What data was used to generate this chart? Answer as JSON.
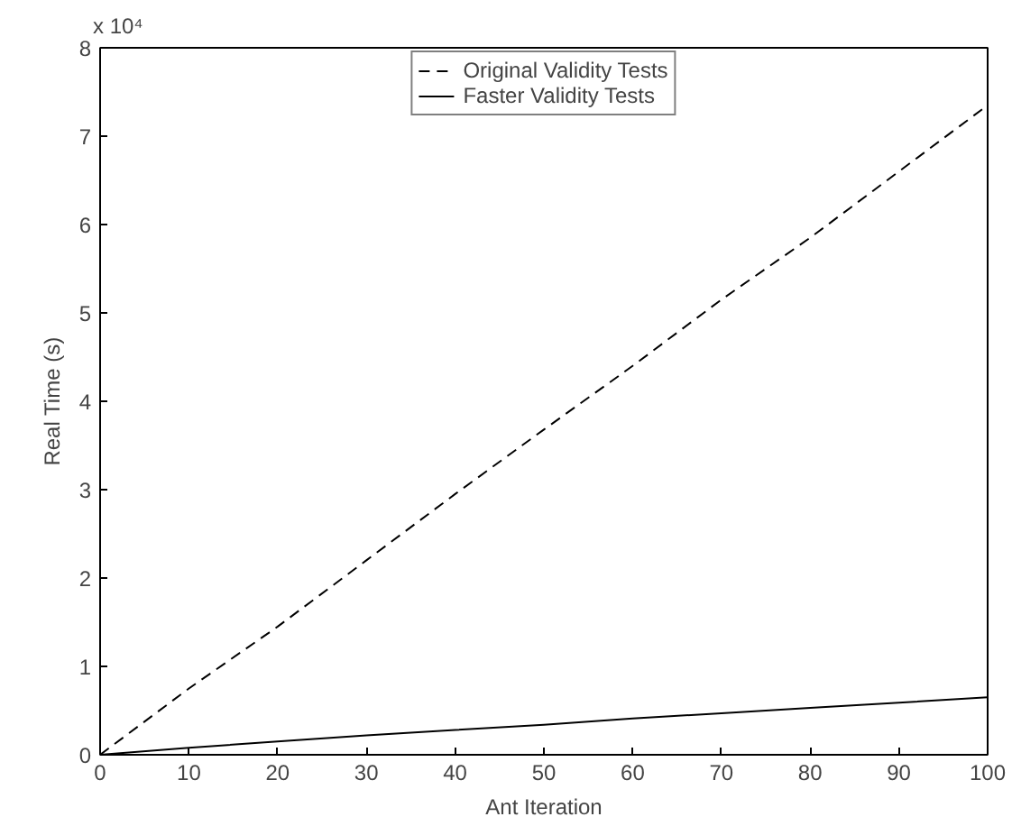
{
  "chart_data": {
    "type": "line",
    "xlabel": "Ant Iteration",
    "ylabel": "Real Time (s)",
    "annotations": [
      "x 10⁴"
    ],
    "x": [
      0,
      10,
      20,
      30,
      40,
      50,
      60,
      70,
      80,
      90,
      100
    ],
    "series": [
      {
        "name": "Original Validity Tests",
        "color": "#000000",
        "line_style": "dashed",
        "values": [
          0,
          0.75,
          1.45,
          2.2,
          2.95,
          3.68,
          4.4,
          5.15,
          5.85,
          6.6,
          7.35
        ]
      },
      {
        "name": "Faster Validity Tests",
        "color": "#000000",
        "line_style": "solid",
        "values": [
          0,
          0.08,
          0.15,
          0.22,
          0.28,
          0.34,
          0.41,
          0.47,
          0.53,
          0.59,
          0.65
        ]
      }
    ],
    "xlim": [
      0,
      100
    ],
    "xticks": [
      0,
      10,
      20,
      30,
      40,
      50,
      60,
      70,
      80,
      90,
      100
    ],
    "ylim": [
      0,
      8
    ],
    "yticks": [
      0,
      1,
      2,
      3,
      4,
      5,
      6,
      7,
      8
    ],
    "grid": false,
    "legend": "top",
    "marker": "none"
  }
}
